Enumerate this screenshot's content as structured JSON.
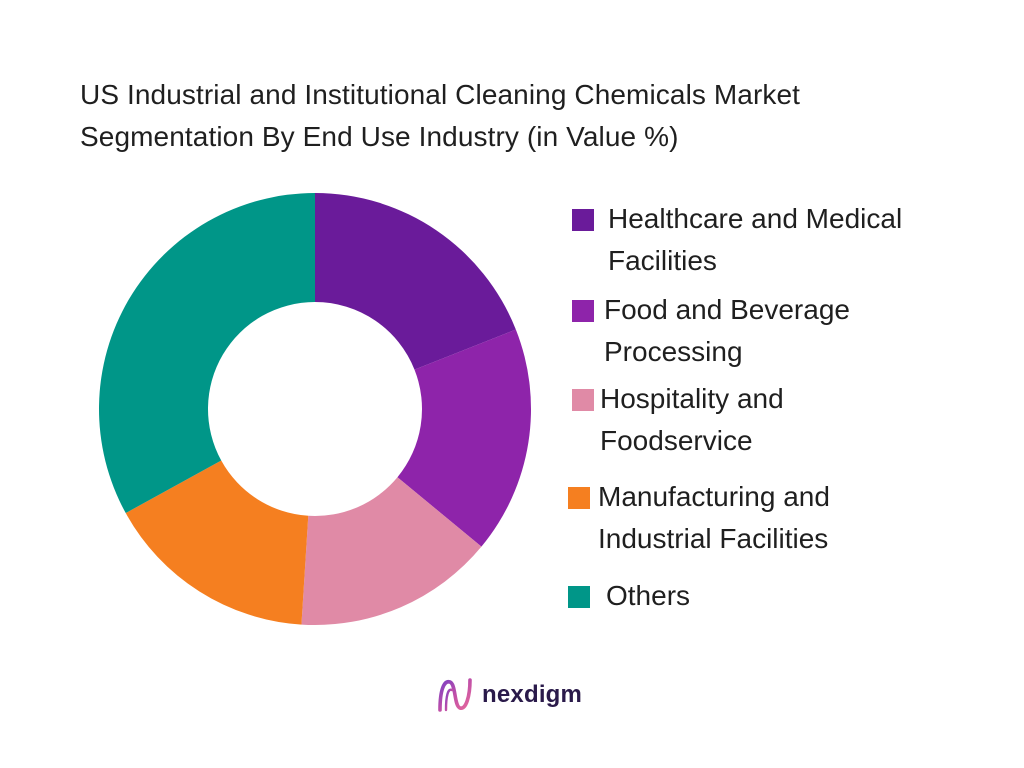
{
  "chart_data": {
    "type": "pie",
    "donut": true,
    "title_lines": [
      "US Industrial and Institutional Cleaning Chemicals Market",
      "Segmentation By End Use Industry (in Value %)"
    ],
    "legend_placement": "right",
    "categories": [
      "Healthcare and Medical Facilities",
      "Food and Beverage Processing",
      "Hospitality and Foodservice",
      "Manufacturing and Industrial Facilities",
      "Others"
    ],
    "values": [
      19,
      17,
      15,
      16,
      33
    ],
    "colors": [
      "#6a1b9a",
      "#8e24aa",
      "#e08aa6",
      "#f57f20",
      "#009688"
    ],
    "legend_lines": [
      [
        "Healthcare and Medical",
        "Facilities"
      ],
      [
        "Food and Beverage",
        "Processing"
      ],
      [
        "Hospitality and",
        "Foodservice"
      ],
      [
        "Manufacturing and",
        "Industrial Facilities"
      ],
      [
        "Others"
      ]
    ]
  },
  "brand": {
    "name": "nexdigm",
    "color": "#2a1a4a",
    "logo_icon": "nexdigm-logo-icon"
  }
}
